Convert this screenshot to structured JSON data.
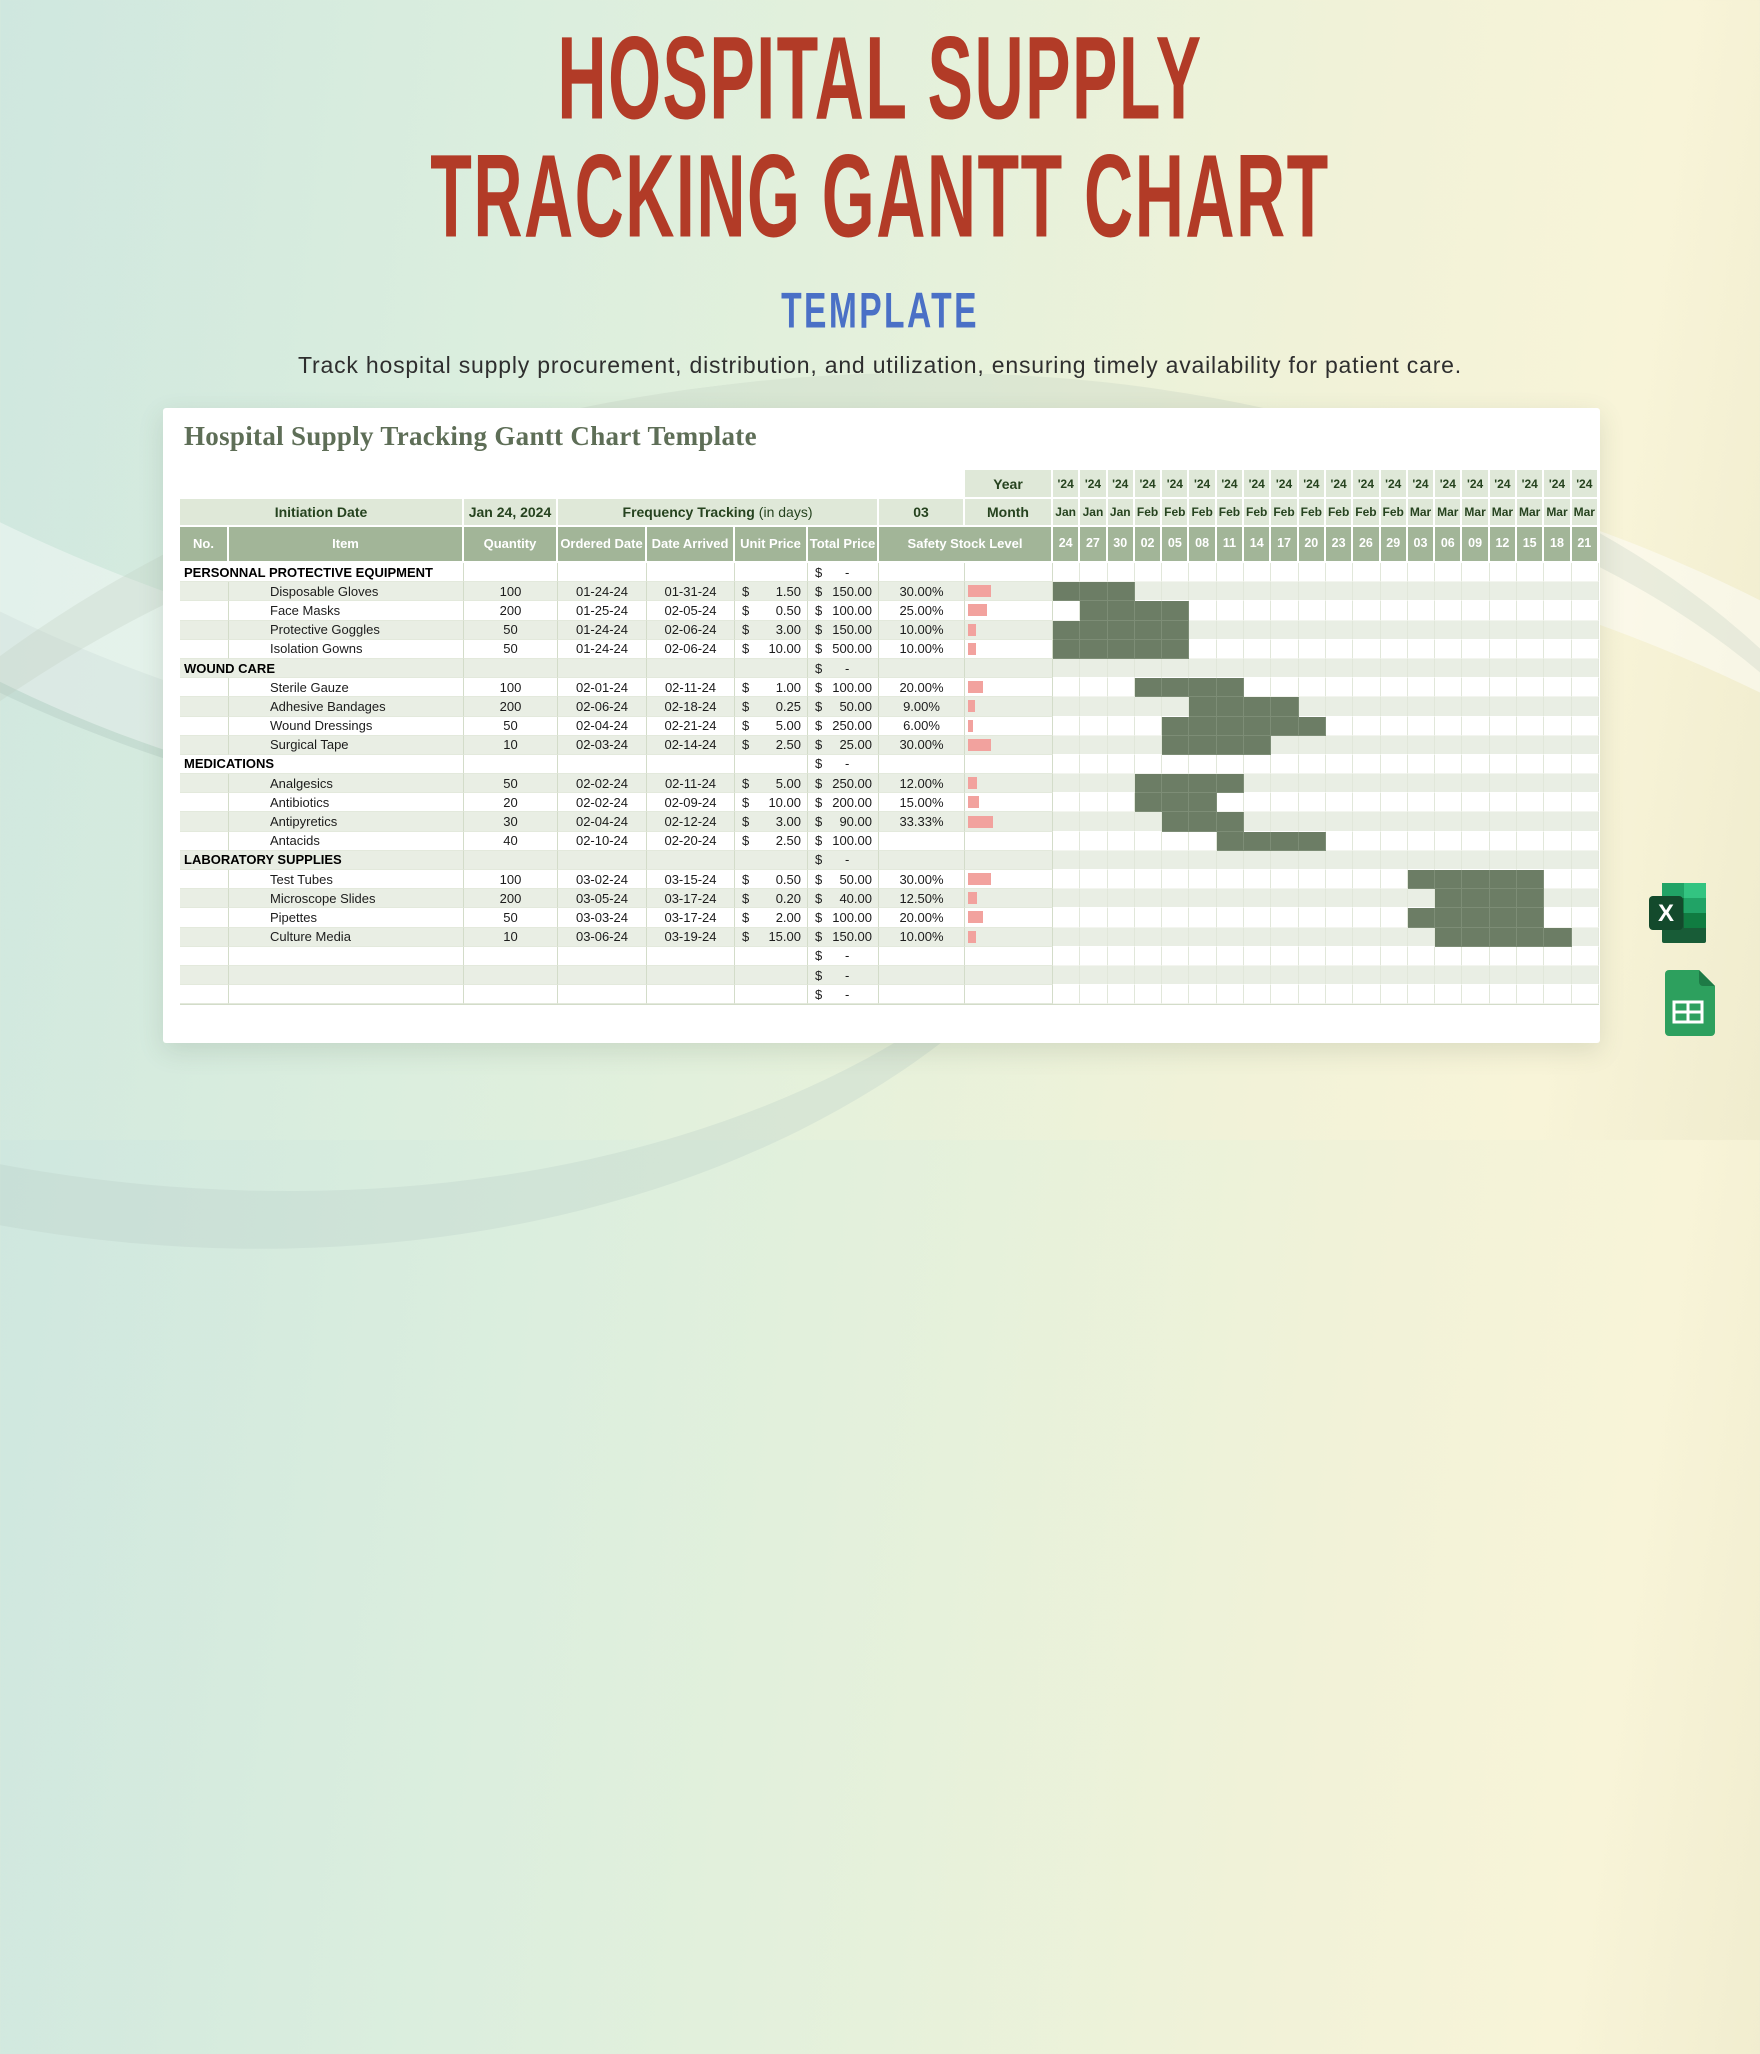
{
  "page": {
    "title_line1": "HOSPITAL SUPPLY",
    "title_line2": "TRACKING GANTT CHART",
    "template_label": "TEMPLATE",
    "description": "Track hospital supply procurement, distribution, and utilization, ensuring timely availability for patient care.",
    "accent_red": "#b23b27",
    "accent_blue": "#4a70c6"
  },
  "sheet": {
    "title": "Hospital Supply Tracking Gantt Chart Template",
    "meta": {
      "initiation_label": "Initiation Date",
      "initiation_value": "Jan 24, 2024",
      "frequency_label": "Frequency Tracking",
      "frequency_suffix": "(in days)",
      "frequency_value": "03",
      "year_label": "Year",
      "month_label": "Month"
    },
    "columns": [
      "No.",
      "Item",
      "Quantity",
      "Ordered Date",
      "Date Arrived",
      "Unit Price",
      "Total Price",
      "Safety Stock Level"
    ],
    "timeline": {
      "years": [
        "'24",
        "'24",
        "'24",
        "'24",
        "'24",
        "'24",
        "'24",
        "'24",
        "'24",
        "'24",
        "'24",
        "'24",
        "'24",
        "'24",
        "'24",
        "'24",
        "'24",
        "'24",
        "'24",
        "'24"
      ],
      "months": [
        "Jan",
        "Jan",
        "Jan",
        "Feb",
        "Feb",
        "Feb",
        "Feb",
        "Feb",
        "Feb",
        "Feb",
        "Feb",
        "Feb",
        "Feb",
        "Mar",
        "Mar",
        "Mar",
        "Mar",
        "Mar",
        "Mar",
        "Mar"
      ],
      "days": [
        "24",
        "27",
        "30",
        "02",
        "05",
        "08",
        "11",
        "14",
        "17",
        "20",
        "23",
        "26",
        "29",
        "03",
        "06",
        "09",
        "12",
        "15",
        "18",
        "21"
      ]
    },
    "rows": [
      {
        "type": "group",
        "item": "PERSONNAL PROTECTIVE EQUIPMENT",
        "total": "-"
      },
      {
        "type": "item",
        "item": "Disposable Gloves",
        "qty": "100",
        "ordered": "01-24-24",
        "arrived": "01-31-24",
        "unit": "1.50",
        "total": "150.00",
        "stock_pct": "30.00%",
        "bar": 30,
        "gantt": [
          1,
          3
        ]
      },
      {
        "type": "item",
        "item": "Face Masks",
        "qty": "200",
        "ordered": "01-25-24",
        "arrived": "02-05-24",
        "unit": "0.50",
        "total": "100.00",
        "stock_pct": "25.00%",
        "bar": 25,
        "gantt": [
          2,
          5
        ]
      },
      {
        "type": "item",
        "item": "Protective Goggles",
        "qty": "50",
        "ordered": "01-24-24",
        "arrived": "02-06-24",
        "unit": "3.00",
        "total": "150.00",
        "stock_pct": "10.00%",
        "bar": 10,
        "gantt": [
          1,
          5
        ]
      },
      {
        "type": "item",
        "item": "Isolation Gowns",
        "qty": "50",
        "ordered": "01-24-24",
        "arrived": "02-06-24",
        "unit": "10.00",
        "total": "500.00",
        "stock_pct": "10.00%",
        "bar": 10,
        "gantt": [
          1,
          5
        ]
      },
      {
        "type": "group",
        "item": "WOUND CARE",
        "total": "-"
      },
      {
        "type": "item",
        "item": "Sterile Gauze",
        "qty": "100",
        "ordered": "02-01-24",
        "arrived": "02-11-24",
        "unit": "1.00",
        "total": "100.00",
        "stock_pct": "20.00%",
        "bar": 20,
        "gantt": [
          4,
          7
        ]
      },
      {
        "type": "item",
        "item": "Adhesive Bandages",
        "qty": "200",
        "ordered": "02-06-24",
        "arrived": "02-18-24",
        "unit": "0.25",
        "total": "50.00",
        "stock_pct": "9.00%",
        "bar": 9,
        "gantt": [
          6,
          9
        ]
      },
      {
        "type": "item",
        "item": "Wound Dressings",
        "qty": "50",
        "ordered": "02-04-24",
        "arrived": "02-21-24",
        "unit": "5.00",
        "total": "250.00",
        "stock_pct": "6.00%",
        "bar": 6,
        "gantt": [
          5,
          10
        ]
      },
      {
        "type": "item",
        "item": "Surgical Tape",
        "qty": "10",
        "ordered": "02-03-24",
        "arrived": "02-14-24",
        "unit": "2.50",
        "total": "25.00",
        "stock_pct": "30.00%",
        "bar": 30,
        "gantt": [
          5,
          8
        ]
      },
      {
        "type": "group",
        "item": "MEDICATIONS",
        "total": "-"
      },
      {
        "type": "item",
        "item": "Analgesics",
        "qty": "50",
        "ordered": "02-02-24",
        "arrived": "02-11-24",
        "unit": "5.00",
        "total": "250.00",
        "stock_pct": "12.00%",
        "bar": 12,
        "gantt": [
          4,
          7
        ]
      },
      {
        "type": "item",
        "item": "Antibiotics",
        "qty": "20",
        "ordered": "02-02-24",
        "arrived": "02-09-24",
        "unit": "10.00",
        "total": "200.00",
        "stock_pct": "15.00%",
        "bar": 15,
        "gantt": [
          4,
          6
        ]
      },
      {
        "type": "item",
        "item": "Antipyretics",
        "qty": "30",
        "ordered": "02-04-24",
        "arrived": "02-12-24",
        "unit": "3.00",
        "total": "90.00",
        "stock_pct": "33.33%",
        "bar": 33.33,
        "gantt": [
          5,
          7
        ]
      },
      {
        "type": "item",
        "item": "Antacids",
        "qty": "40",
        "ordered": "02-10-24",
        "arrived": "02-20-24",
        "unit": "2.50",
        "total": "100.00",
        "stock_pct": "",
        "bar": 0,
        "gantt": [
          7,
          10
        ]
      },
      {
        "type": "group",
        "item": "LABORATORY SUPPLIES",
        "total": "-"
      },
      {
        "type": "item",
        "item": "Test Tubes",
        "qty": "100",
        "ordered": "03-02-24",
        "arrived": "03-15-24",
        "unit": "0.50",
        "total": "50.00",
        "stock_pct": "30.00%",
        "bar": 30,
        "gantt": [
          14,
          18
        ]
      },
      {
        "type": "item",
        "item": "Microscope Slides",
        "qty": "200",
        "ordered": "03-05-24",
        "arrived": "03-17-24",
        "unit": "0.20",
        "total": "40.00",
        "stock_pct": "12.50%",
        "bar": 12.5,
        "gantt": [
          15,
          18
        ]
      },
      {
        "type": "item",
        "item": "Pipettes",
        "qty": "50",
        "ordered": "03-03-24",
        "arrived": "03-17-24",
        "unit": "2.00",
        "total": "100.00",
        "stock_pct": "20.00%",
        "bar": 20,
        "gantt": [
          14,
          18
        ]
      },
      {
        "type": "item",
        "item": "Culture Media",
        "qty": "10",
        "ordered": "03-06-24",
        "arrived": "03-19-24",
        "unit": "15.00",
        "total": "150.00",
        "stock_pct": "10.00%",
        "bar": 10,
        "gantt": [
          15,
          19
        ]
      },
      {
        "type": "empty",
        "total": "-"
      },
      {
        "type": "empty",
        "total": "-"
      },
      {
        "type": "empty",
        "total": "-"
      }
    ],
    "colors": {
      "header_green": "#a2b598",
      "meta_green": "#dfe8d8",
      "stripe": "#e9eee4",
      "gantt_fill": "#6c7d65",
      "stock_bar": "#f2a29e"
    }
  },
  "icons": {
    "excel": "excel-file-icon",
    "sheets": "google-sheets-icon"
  }
}
